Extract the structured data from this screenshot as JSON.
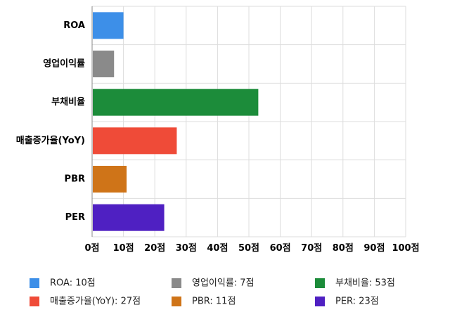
{
  "chart_data": {
    "type": "bar",
    "orientation": "horizontal",
    "categories": [
      "ROA",
      "영업이익률",
      "부채비율",
      "매출증가율(YoY)",
      "PBR",
      "PER"
    ],
    "values": [
      10,
      7,
      53,
      27,
      11,
      23
    ],
    "colors": [
      "#3d8fe8",
      "#8a8a8a",
      "#1c8c3a",
      "#ef4b38",
      "#cf7418",
      "#4f20c2"
    ],
    "xlim": [
      0,
      100
    ],
    "xticks": [
      0,
      10,
      20,
      30,
      40,
      50,
      60,
      70,
      80,
      90,
      100
    ],
    "tick_suffix": "점",
    "grid": true,
    "legend_position": "bottom",
    "legend": [
      "ROA: 10점",
      "영업이익률: 7점",
      "부채비율: 53점",
      "매출증가율(YoY): 27점",
      "PBR: 11점",
      "PER: 23점"
    ],
    "title": "",
    "xlabel": "",
    "ylabel": ""
  }
}
